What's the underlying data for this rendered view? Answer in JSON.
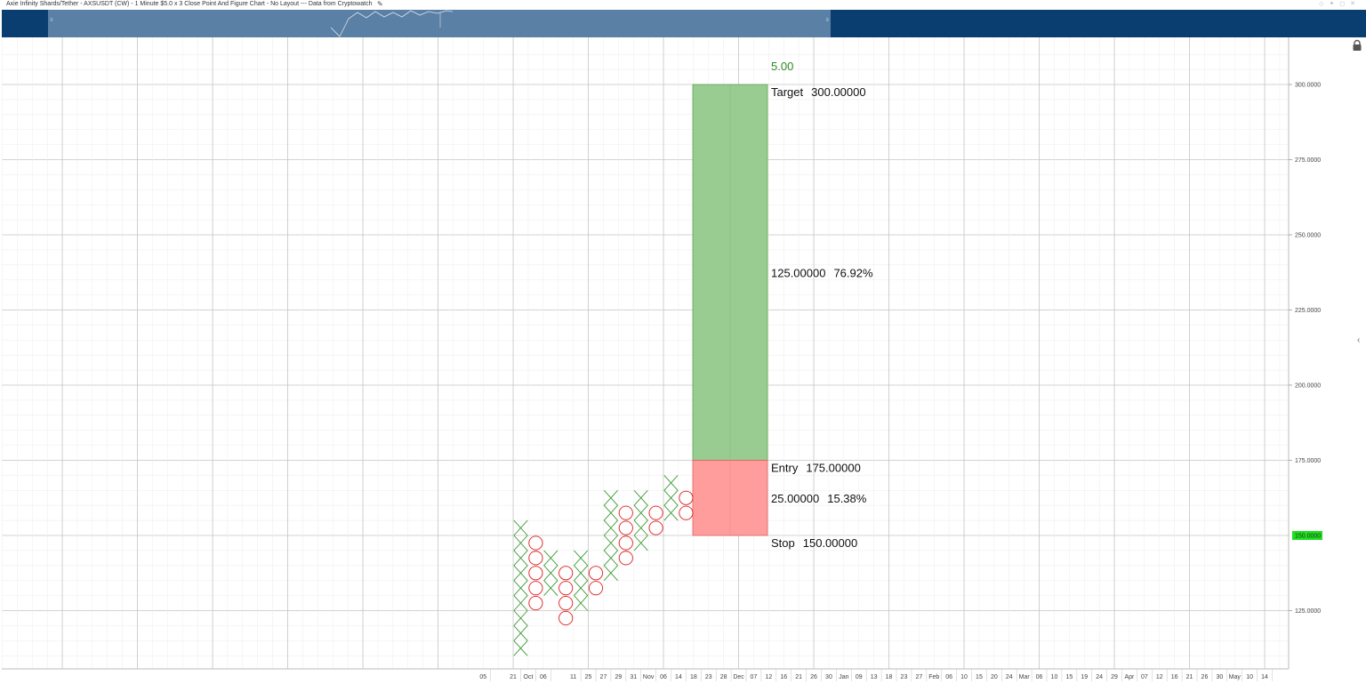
{
  "window": {
    "title": "Axie Infinity Shards/Tether - AXSUSDT (CW) - 1 Minute $5.0 x 3 Close Point And Figure Chart - No Layout --- Data from Cryptowatch",
    "edit_icon": "pencil-icon",
    "lock_icon": "lock-icon",
    "collapse_icon": "chevron-left-icon"
  },
  "chart_data": {
    "type": "point-and-figure",
    "box_size": 5.0,
    "reversal": 3,
    "ylim": [
      110,
      310
    ],
    "y_ticks": [
      "300.0000",
      "275.0000",
      "250.0000",
      "225.0000",
      "200.0000",
      "175.0000",
      "125.0000"
    ],
    "y_tick_values": [
      300,
      275,
      250,
      225,
      200,
      175,
      125
    ],
    "last_price_label": "150.0000",
    "last_price": 150,
    "x_labels": [
      "05",
      "21",
      "Oct",
      "06",
      "11",
      "25",
      "27",
      "29",
      "31",
      "Nov",
      "06",
      "14",
      "18",
      "23",
      "28",
      "Dec",
      "07",
      "12",
      "16",
      "21",
      "26",
      "30",
      "Jan",
      "09",
      "13",
      "18",
      "23",
      "27",
      "Feb",
      "06",
      "10",
      "15",
      "20",
      "24",
      "Mar",
      "06",
      "10",
      "15",
      "19",
      "24",
      "29",
      "Apr",
      "07",
      "12",
      "16",
      "21",
      "26",
      "30",
      "May",
      "10",
      "14"
    ],
    "x_label_columns": [
      -2,
      0,
      1,
      2,
      4,
      5,
      6,
      7,
      8,
      9,
      10,
      11,
      12,
      13,
      14,
      15,
      16,
      17,
      18,
      19,
      20,
      21,
      22,
      23,
      24,
      25,
      26,
      27,
      28,
      29,
      30,
      31,
      32,
      33,
      34,
      35,
      36,
      37,
      38,
      39,
      40,
      41,
      42,
      43,
      44,
      45,
      46,
      47,
      48,
      49,
      50
    ],
    "columns": [
      {
        "type": "X",
        "low": 110,
        "high": 155
      },
      {
        "type": "O",
        "low": 125,
        "high": 150
      },
      {
        "type": "X",
        "low": 130,
        "high": 145
      },
      {
        "type": "O",
        "low": 120,
        "high": 140
      },
      {
        "type": "X",
        "low": 125,
        "high": 145
      },
      {
        "type": "O",
        "low": 130,
        "high": 140
      },
      {
        "type": "X",
        "low": 135,
        "high": 165
      },
      {
        "type": "O",
        "low": 140,
        "high": 160
      },
      {
        "type": "X",
        "low": 145,
        "high": 165
      },
      {
        "type": "O",
        "low": 150,
        "high": 160
      },
      {
        "type": "X",
        "low": 155,
        "high": 170
      },
      {
        "type": "O",
        "low": 155,
        "high": 165
      }
    ],
    "position": {
      "entry": 175,
      "target": 300,
      "stop": 150,
      "ratio_label": "5.00",
      "target_label": "Target",
      "target_value": "300.00000",
      "profit_amount": "125.00000",
      "profit_percent": "76.92%",
      "entry_label": "Entry",
      "entry_value": "175.00000",
      "risk_amount": "25.00000",
      "risk_percent": "15.38%",
      "stop_label": "Stop",
      "stop_value": "150.00000"
    },
    "colors": {
      "x_mark": "#3c9a32",
      "o_mark": "#e02020",
      "profit_fill": "#99cc91",
      "profit_stroke": "#5aa450",
      "loss_fill": "#ff9c9c",
      "loss_stroke": "#e06060",
      "ratio_text": "#2a8a22",
      "last_price_bg": "#22dd22"
    }
  }
}
